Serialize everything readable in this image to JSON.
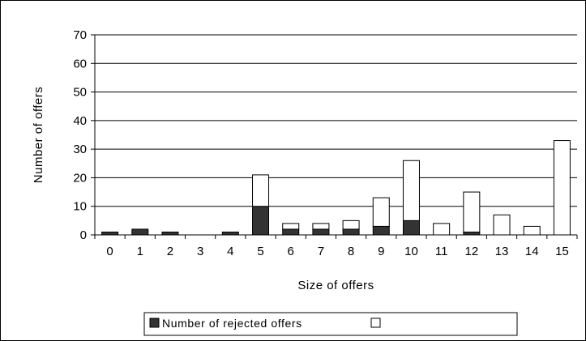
{
  "chart_data": {
    "type": "bar",
    "stacked": true,
    "categories": [
      "0",
      "1",
      "2",
      "3",
      "4",
      "5",
      "6",
      "7",
      "8",
      "9",
      "10",
      "11",
      "12",
      "13",
      "14",
      "15"
    ],
    "series": [
      {
        "name": "Number of rejected offers",
        "values": [
          1,
          2,
          1,
          0,
          1,
          10,
          2,
          2,
          2,
          3,
          5,
          0,
          1,
          0,
          0,
          0
        ],
        "color": "#333333"
      },
      {
        "name": "",
        "values": [
          0,
          0,
          0,
          0,
          0,
          11,
          2,
          2,
          3,
          10,
          21,
          4,
          14,
          7,
          3,
          33
        ],
        "color": "#ffffff"
      }
    ],
    "xlabel": "Size of offers",
    "ylabel": "Number of offers",
    "ylim": [
      0,
      70
    ],
    "yticks": [
      "0",
      "10",
      "20",
      "30",
      "40",
      "50",
      "60",
      "70"
    ],
    "grid": true,
    "legend": "bottom"
  }
}
